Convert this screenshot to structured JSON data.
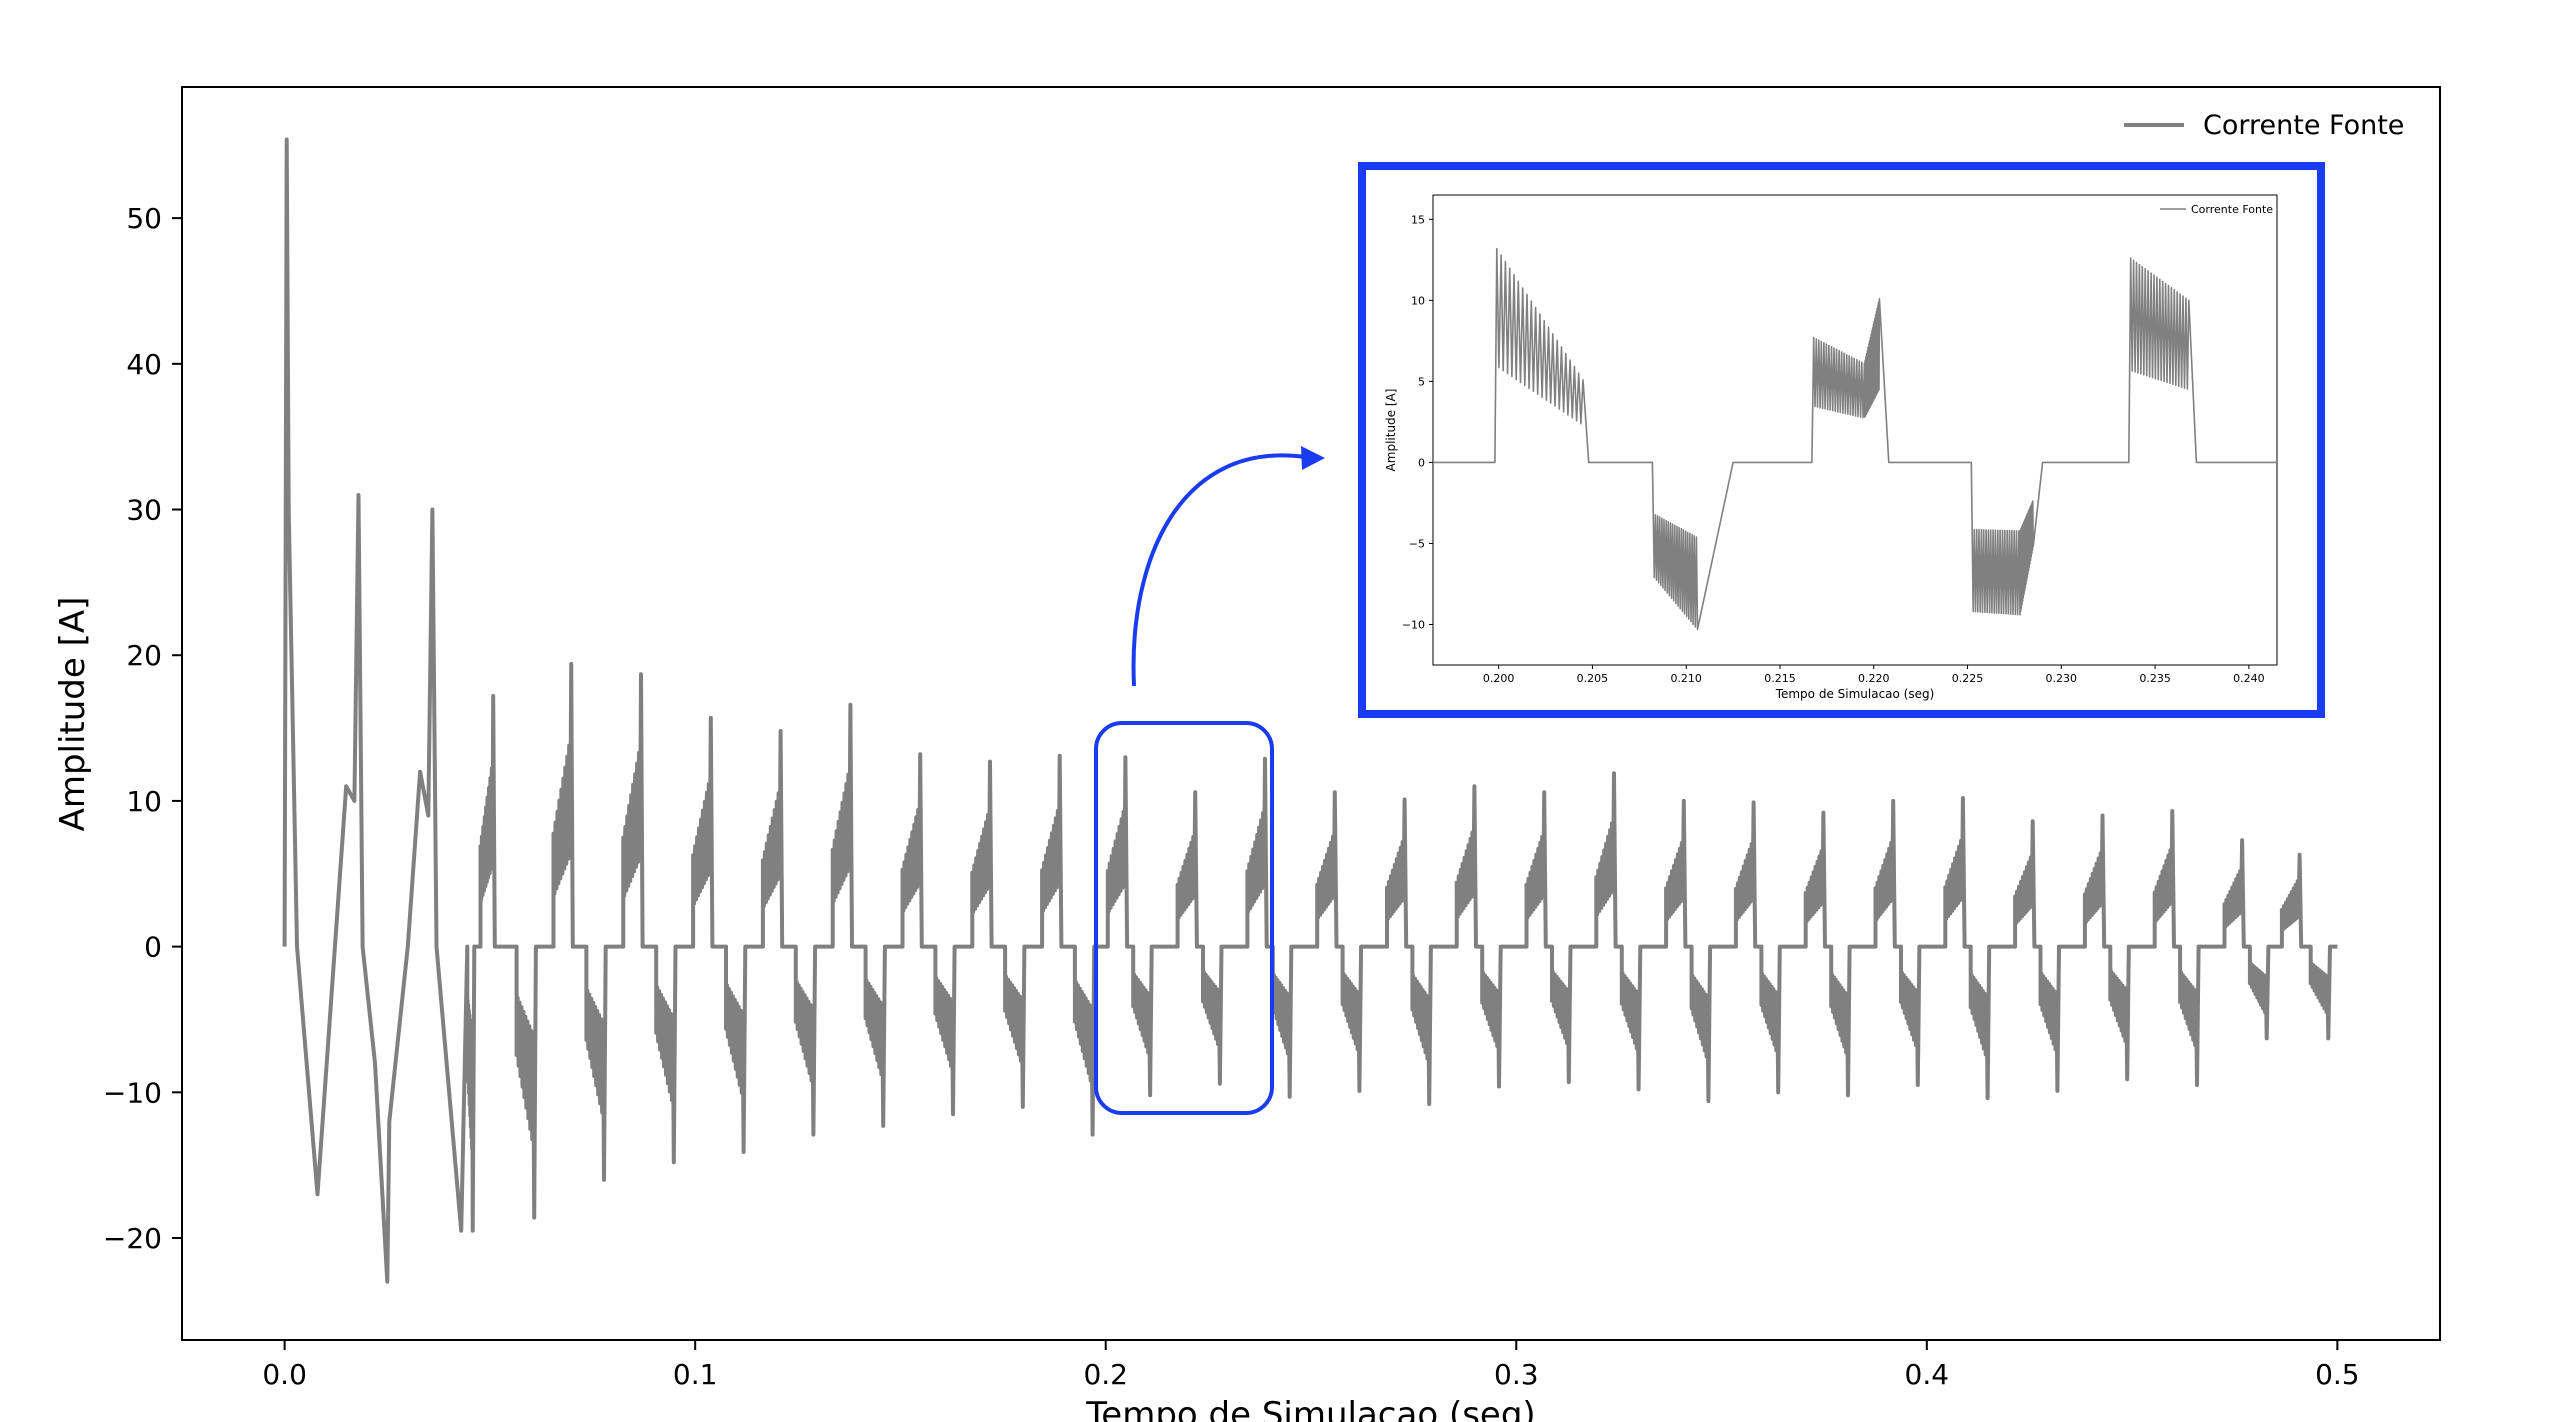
{
  "chart_data": {
    "type": "line",
    "title": "",
    "xlabel": "Tempo de Simulacao (seg)",
    "ylabel": "Amplitude [A]",
    "xlim": [
      -0.025,
      0.525
    ],
    "ylim": [
      -27,
      59
    ],
    "x_ticks": [
      0.0,
      0.1,
      0.2,
      0.3,
      0.4,
      0.5
    ],
    "x_tick_labels": [
      "0.0",
      "0.1",
      "0.2",
      "0.3",
      "0.4",
      "0.5"
    ],
    "y_ticks": [
      -20,
      -10,
      0,
      10,
      20,
      30,
      40,
      50
    ],
    "y_tick_labels": [
      "−20",
      "−10",
      "0",
      "10",
      "20",
      "30",
      "40",
      "50"
    ],
    "grid": false,
    "legend_position": "top-right",
    "series": [
      {
        "name": "Corrente Fonte",
        "color": "#808080",
        "description_points": {
          "x": [
            0.0,
            0.0005,
            0.001,
            0.003,
            0.008,
            0.015,
            0.017,
            0.018,
            0.019,
            0.022,
            0.025,
            0.0255,
            0.03,
            0.033,
            0.035,
            0.036,
            0.037,
            0.043
          ],
          "y": [
            0,
            55.4,
            30,
            0,
            -17,
            11,
            10,
            31,
            0,
            -8,
            -23,
            -12,
            0,
            12,
            9,
            30,
            0,
            -19.5
          ]
        },
        "cycle_peaks": {
          "positive_x": [
            0.05,
            0.069,
            0.086,
            0.103,
            0.12,
            0.137,
            0.154,
            0.171,
            0.188,
            0.204,
            0.221,
            0.238,
            0.255,
            0.272,
            0.289,
            0.306,
            0.323,
            0.34,
            0.357,
            0.374,
            0.391,
            0.408,
            0.425,
            0.442,
            0.459,
            0.476,
            0.49
          ],
          "positive_y": [
            17.2,
            19.4,
            18.7,
            15.7,
            14.8,
            16.6,
            13.2,
            12.7,
            13.1,
            13.0,
            10.6,
            12.9,
            10.6,
            10.1,
            11.0,
            10.6,
            11.9,
            10.0,
            9.9,
            9.2,
            10.0,
            10.2,
            8.6,
            9.0,
            9.3,
            7.3,
            6.3
          ],
          "negative_x": [
            0.045,
            0.06,
            0.077,
            0.094,
            0.111,
            0.128,
            0.145,
            0.162,
            0.179,
            0.196,
            0.21,
            0.227,
            0.244,
            0.261,
            0.278,
            0.295,
            0.312,
            0.329,
            0.346,
            0.363,
            0.38,
            0.397,
            0.414,
            0.431,
            0.448,
            0.465,
            0.482,
            0.497
          ],
          "negative_y": [
            -19.5,
            -18.6,
            -16.0,
            -14.8,
            -14.1,
            -12.9,
            -12.3,
            -11.5,
            -11.0,
            -12.9,
            -10.2,
            -9.4,
            -10.3,
            -9.9,
            -10.8,
            -9.6,
            -9.3,
            -9.8,
            -10.6,
            -10.0,
            -10.2,
            -9.5,
            -10.4,
            -9.9,
            -9.1,
            -9.5,
            -6.3,
            -6.3
          ]
        }
      }
    ],
    "annotation": "arrow from highlighted region to zoom inset",
    "inset": {
      "type": "line",
      "xlabel": "Tempo de Simulacao (seg)",
      "ylabel": "Amplitude [A]",
      "xlim": [
        0.1965,
        0.2415
      ],
      "ylim": [
        -12.5,
        16.5
      ],
      "x_ticks": [
        0.2,
        0.205,
        0.21,
        0.215,
        0.22,
        0.225,
        0.23,
        0.235,
        0.24
      ],
      "x_tick_labels": [
        "0.200",
        "0.205",
        "0.210",
        "0.215",
        "0.220",
        "0.225",
        "0.230",
        "0.235",
        "0.240"
      ],
      "y_ticks": [
        -10,
        -5,
        0,
        5,
        10,
        15
      ],
      "y_tick_labels": [
        "−10",
        "−5",
        "0",
        "5",
        "10",
        "15"
      ],
      "legend": "Corrente Fonte",
      "legend_position": "top-right",
      "segments": [
        {
          "x": [
            0.1965,
            0.1998,
            0.1999,
            0.2045,
            0.2048,
            0.2082
          ],
          "y": [
            0,
            0,
            13.2,
            5.1,
            0,
            0
          ]
        },
        {
          "x": [
            0.2082,
            0.2083,
            0.2106,
            0.2125,
            0.2167
          ],
          "y": [
            0,
            -7.1,
            -10.3,
            0,
            0
          ]
        },
        {
          "x": [
            0.2167,
            0.2168,
            0.2195,
            0.2203,
            0.2208,
            0.2252
          ],
          "y": [
            0,
            7.7,
            6.1,
            10.1,
            0,
            0
          ]
        },
        {
          "x": [
            0.2252,
            0.2253,
            0.2278,
            0.2285,
            0.229,
            0.2336
          ],
          "y": [
            0,
            -9.2,
            -9.4,
            -5.2,
            0,
            0
          ]
        },
        {
          "x": [
            0.2336,
            0.2337,
            0.2368,
            0.2372,
            0.2415
          ],
          "y": [
            0,
            12.6,
            10.0,
            0,
            0
          ]
        }
      ]
    }
  }
}
